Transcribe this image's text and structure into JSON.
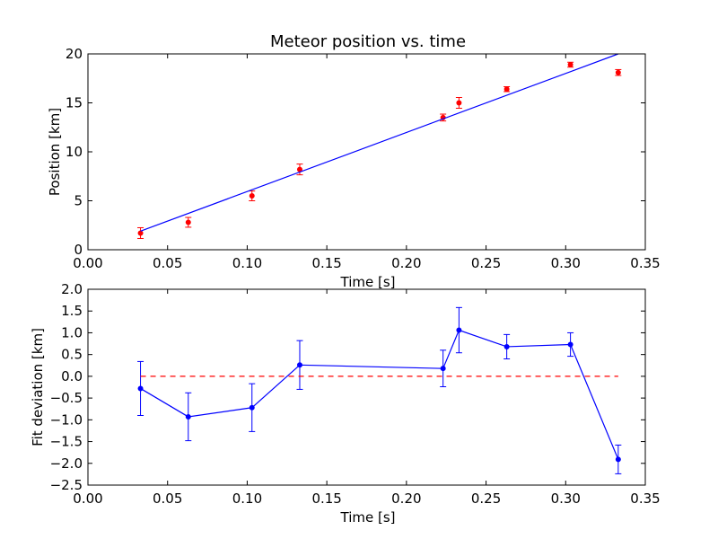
{
  "chart_data": [
    {
      "type": "scatter",
      "title": "Meteor position vs. time",
      "xlabel": "Time [s]",
      "ylabel": "Position [km]",
      "xlim": [
        0.0,
        0.35
      ],
      "ylim": [
        0,
        20
      ],
      "xticks": [
        "0.00",
        "0.05",
        "0.10",
        "0.15",
        "0.20",
        "0.25",
        "0.30",
        "0.35"
      ],
      "yticks": [
        "0",
        "5",
        "10",
        "15",
        "20"
      ],
      "grid": false,
      "series": [
        {
          "kind": "errorbar-points",
          "color": "#ff0000",
          "x": [
            0.033,
            0.063,
            0.103,
            0.133,
            0.223,
            0.233,
            0.263,
            0.303,
            0.333
          ],
          "y": [
            1.7,
            2.8,
            5.5,
            8.2,
            13.5,
            15.0,
            16.4,
            18.9,
            18.1
          ],
          "err": [
            0.55,
            0.5,
            0.5,
            0.55,
            0.35,
            0.55,
            0.25,
            0.25,
            0.3
          ]
        },
        {
          "kind": "fit-line",
          "color": "#0000ff",
          "x": [
            0.033,
            0.333
          ],
          "y": [
            1.9,
            20.0
          ]
        }
      ]
    },
    {
      "type": "line",
      "title": "",
      "xlabel": "Time [s]",
      "ylabel": "Fit deviation [km]",
      "xlim": [
        0.0,
        0.35
      ],
      "ylim": [
        -2.5,
        2.0
      ],
      "xticks": [
        "0.00",
        "0.05",
        "0.10",
        "0.15",
        "0.20",
        "0.25",
        "0.30",
        "0.35"
      ],
      "yticks": [
        "2.0",
        "1.5",
        "1.0",
        "0.5",
        "0.0",
        "−0.5",
        "−1.0",
        "−1.5",
        "−2.0",
        "−2.5"
      ],
      "grid": false,
      "series": [
        {
          "kind": "errorbar-line",
          "color": "#0000ff",
          "x": [
            0.033,
            0.063,
            0.103,
            0.133,
            0.223,
            0.233,
            0.263,
            0.303,
            0.333
          ],
          "y": [
            -0.28,
            -0.93,
            -0.72,
            0.26,
            0.18,
            1.06,
            0.68,
            0.73,
            -1.91
          ],
          "err": [
            0.62,
            0.55,
            0.55,
            0.56,
            0.42,
            0.52,
            0.28,
            0.27,
            0.33
          ]
        },
        {
          "kind": "reference-line",
          "color": "#ff0000",
          "dashed": true,
          "x": [
            0.033,
            0.333
          ],
          "y": [
            0.0,
            0.0
          ]
        }
      ]
    }
  ]
}
